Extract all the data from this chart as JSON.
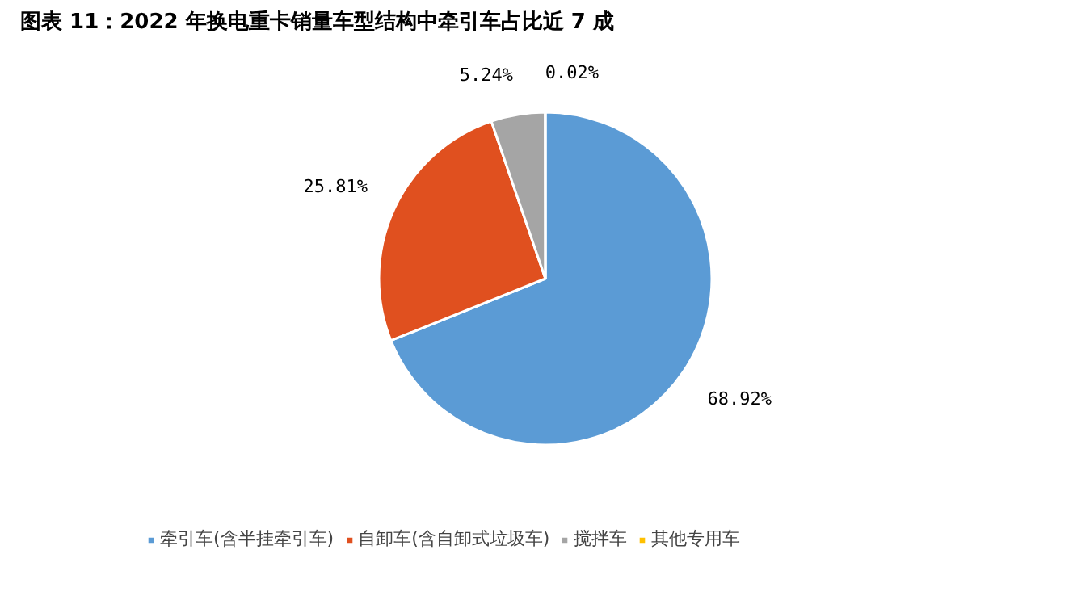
{
  "chart_data": {
    "type": "pie",
    "title": "图表 11：2022 年换电重卡销量车型结构中牵引车占比近 7 成",
    "categories": [
      "牵引车(含半挂牵引车)",
      "自卸车(含自卸式垃圾车)",
      "搅拌车",
      "其他专用车"
    ],
    "values": [
      68.92,
      25.81,
      5.24,
      0.02
    ],
    "colors": [
      "#5b9bd5",
      "#e0501f",
      "#a5a5a5",
      "#ffc000"
    ],
    "value_labels": [
      "68.92%",
      "25.81%",
      "5.24%",
      "0.02%"
    ],
    "legend": "bottom"
  }
}
